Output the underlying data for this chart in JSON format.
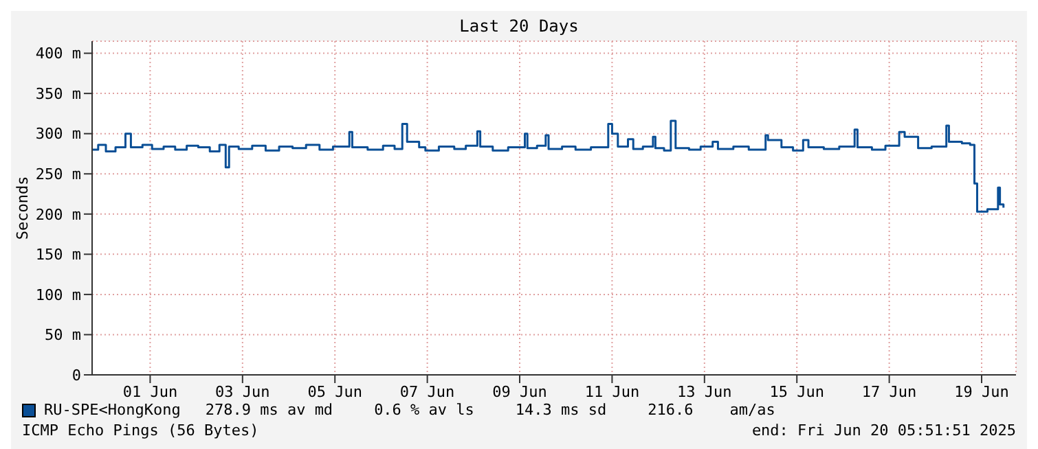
{
  "chart_data": {
    "type": "step",
    "title": "Last 20 Days",
    "ylabel": "Seconds",
    "xlim": [
      "2025-05-31T05:51",
      "2025-06-20T05:51"
    ],
    "xticks": [
      {
        "value": "2025-06-01T12:00",
        "label": "01 Jun"
      },
      {
        "value": "2025-06-03T12:00",
        "label": "03 Jun"
      },
      {
        "value": "2025-06-05T12:00",
        "label": "05 Jun"
      },
      {
        "value": "2025-06-07T12:00",
        "label": "07 Jun"
      },
      {
        "value": "2025-06-09T12:00",
        "label": "09 Jun"
      },
      {
        "value": "2025-06-11T12:00",
        "label": "11 Jun"
      },
      {
        "value": "2025-06-13T12:00",
        "label": "13 Jun"
      },
      {
        "value": "2025-06-15T12:00",
        "label": "15 Jun"
      },
      {
        "value": "2025-06-17T12:00",
        "label": "17 Jun"
      },
      {
        "value": "2025-06-19T12:00",
        "label": "19 Jun"
      }
    ],
    "ylim": [
      0,
      415
    ],
    "yticks": [
      {
        "value": 0,
        "label": "0"
      },
      {
        "value": 50,
        "label": "50 m"
      },
      {
        "value": 100,
        "label": "100 m"
      },
      {
        "value": 150,
        "label": "150 m"
      },
      {
        "value": 200,
        "label": "200 m"
      },
      {
        "value": 250,
        "label": "250 m"
      },
      {
        "value": 300,
        "label": "300 m"
      },
      {
        "value": 350,
        "label": "350 m"
      },
      {
        "value": 400,
        "label": "400 m"
      }
    ],
    "grid": true,
    "legend": "bottom left",
    "line_style": "solid",
    "series": [
      {
        "name": "RU-SPE<HongKong",
        "color": "#0a4f96",
        "x": [
          "2025-05-31T05:51",
          "2025-05-31T09:00",
          "2025-05-31T13:00",
          "2025-05-31T18:00",
          "2025-05-31T23:10",
          "2025-06-01T02:00",
          "2025-06-01T08:00",
          "2025-06-01T13:00",
          "2025-06-01T19:00",
          "2025-06-02T01:00",
          "2025-06-02T07:00",
          "2025-06-02T13:00",
          "2025-06-02T19:00",
          "2025-06-03T00:00",
          "2025-06-03T03:15",
          "2025-06-03T05:00",
          "2025-06-03T10:00",
          "2025-06-03T17:00",
          "2025-06-04T00:00",
          "2025-06-04T07:00",
          "2025-06-04T14:00",
          "2025-06-04T21:00",
          "2025-06-05T04:00",
          "2025-06-05T11:00",
          "2025-06-05T19:30",
          "2025-06-05T21:00",
          "2025-06-06T05:00",
          "2025-06-06T13:00",
          "2025-06-06T19:00",
          "2025-06-06T23:00",
          "2025-06-07T01:30",
          "2025-06-07T07:45",
          "2025-06-07T11:00",
          "2025-06-07T18:00",
          "2025-06-08T02:00",
          "2025-06-08T08:00",
          "2025-06-08T14:00",
          "2025-06-08T15:30",
          "2025-06-08T22:00",
          "2025-06-09T06:00",
          "2025-06-09T14:40",
          "2025-06-09T16:00",
          "2025-06-09T21:00",
          "2025-06-10T01:30",
          "2025-06-10T03:00",
          "2025-06-10T10:00",
          "2025-06-10T17:00",
          "2025-06-11T01:00",
          "2025-06-11T10:00",
          "2025-06-11T12:00",
          "2025-06-11T15:00",
          "2025-06-11T20:15",
          "2025-06-11T23:00",
          "2025-06-12T04:00",
          "2025-06-12T09:15",
          "2025-06-12T10:30",
          "2025-06-12T15:00",
          "2025-06-12T18:30",
          "2025-06-12T21:00",
          "2025-06-13T04:00",
          "2025-06-13T10:00",
          "2025-06-13T16:15",
          "2025-06-13T19:00",
          "2025-06-14T03:00",
          "2025-06-14T11:00",
          "2025-06-14T19:45",
          "2025-06-14T21:00",
          "2025-06-15T04:00",
          "2025-06-15T10:00",
          "2025-06-15T15:15",
          "2025-06-15T18:00",
          "2025-06-16T02:00",
          "2025-06-16T10:00",
          "2025-06-16T18:00",
          "2025-06-16T19:30",
          "2025-06-17T03:00",
          "2025-06-17T10:00",
          "2025-06-17T17:10",
          "2025-06-17T20:00",
          "2025-06-18T03:00",
          "2025-06-18T10:00",
          "2025-06-18T17:40",
          "2025-06-18T19:00",
          "2025-06-19T01:45",
          "2025-06-19T06:00",
          "2025-06-19T08:15",
          "2025-06-19T09:40",
          "2025-06-19T15:00",
          "2025-06-19T20:30",
          "2025-06-19T21:30",
          "2025-06-19T23:20"
        ],
        "values": [
          280,
          286,
          278,
          283,
          300,
          283,
          286,
          281,
          284,
          280,
          285,
          283,
          278,
          286,
          258,
          284,
          281,
          285,
          279,
          284,
          282,
          286,
          280,
          284,
          302,
          283,
          280,
          285,
          281,
          312,
          290,
          283,
          279,
          284,
          281,
          285,
          303,
          284,
          279,
          283,
          300,
          282,
          285,
          298,
          281,
          284,
          280,
          283,
          312,
          300,
          284,
          293,
          281,
          284,
          296,
          282,
          279,
          316,
          282,
          280,
          284,
          290,
          281,
          284,
          280,
          298,
          292,
          283,
          279,
          292,
          283,
          281,
          284,
          305,
          283,
          280,
          285,
          302,
          296,
          282,
          284,
          310,
          290,
          288,
          286,
          238,
          203,
          206,
          233,
          212,
          208
        ]
      }
    ],
    "annotations": [
      "278.9 ms av md",
      "0.6 % av ls",
      "14.3 ms sd",
      "216.6    am/as",
      "ICMP Echo Pings (56 Bytes)",
      "end: Fri Jun 20 05:51:51 2025"
    ]
  }
}
